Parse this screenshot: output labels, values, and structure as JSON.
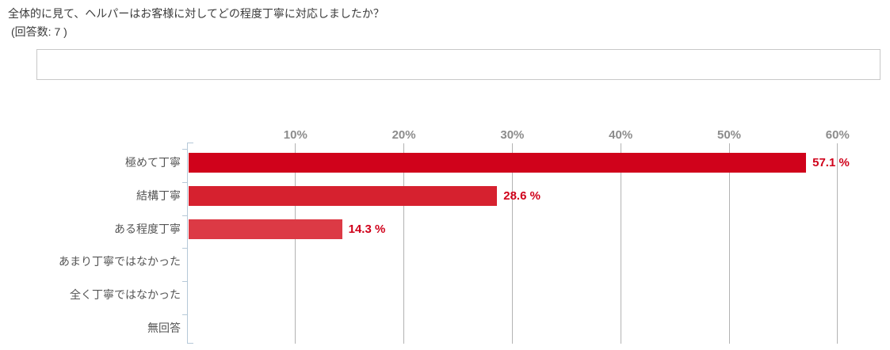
{
  "page": {
    "title": "全体的に見て、ヘルパーはお客様に対してどの程度丁寧に対応しましたか？",
    "response_count_label": "(回答数: 7 )"
  },
  "chart_data": {
    "type": "bar",
    "orientation": "horizontal",
    "title": "全体的に見て、ヘルパーはお客様に対してどの程度丁寧に対応しましたか？",
    "subtitle": "(回答数: 7 )",
    "categories": [
      "極めて丁寧",
      "結構丁寧",
      "ある程度丁寧",
      "あまり丁寧ではなかった",
      "全く丁寧ではなかった",
      "無回答"
    ],
    "values": [
      57.1,
      28.6,
      14.3,
      0,
      0,
      0
    ],
    "value_labels": [
      "57.1 %",
      "28.6 %",
      "14.3 %",
      "",
      "",
      ""
    ],
    "x_tick_labels": [
      "10%",
      "20%",
      "30%",
      "40%",
      "50%",
      "60%"
    ],
    "x_tick_values": [
      10,
      20,
      30,
      40,
      50,
      60
    ],
    "xlim": [
      0,
      60
    ],
    "grid": true,
    "legend": false,
    "bar_colors": [
      "#d0021b",
      "#d6212f",
      "#dc3a45",
      null,
      null,
      null
    ],
    "colors": {
      "value_label": "#d0021b",
      "axis_line": "#b6c9d8",
      "gridline": "#b3b3b3",
      "tick_label": "#8c8c8c",
      "category_label": "#555555",
      "title_text": "#3b3b3b",
      "box_border": "#c8c8c8"
    }
  }
}
